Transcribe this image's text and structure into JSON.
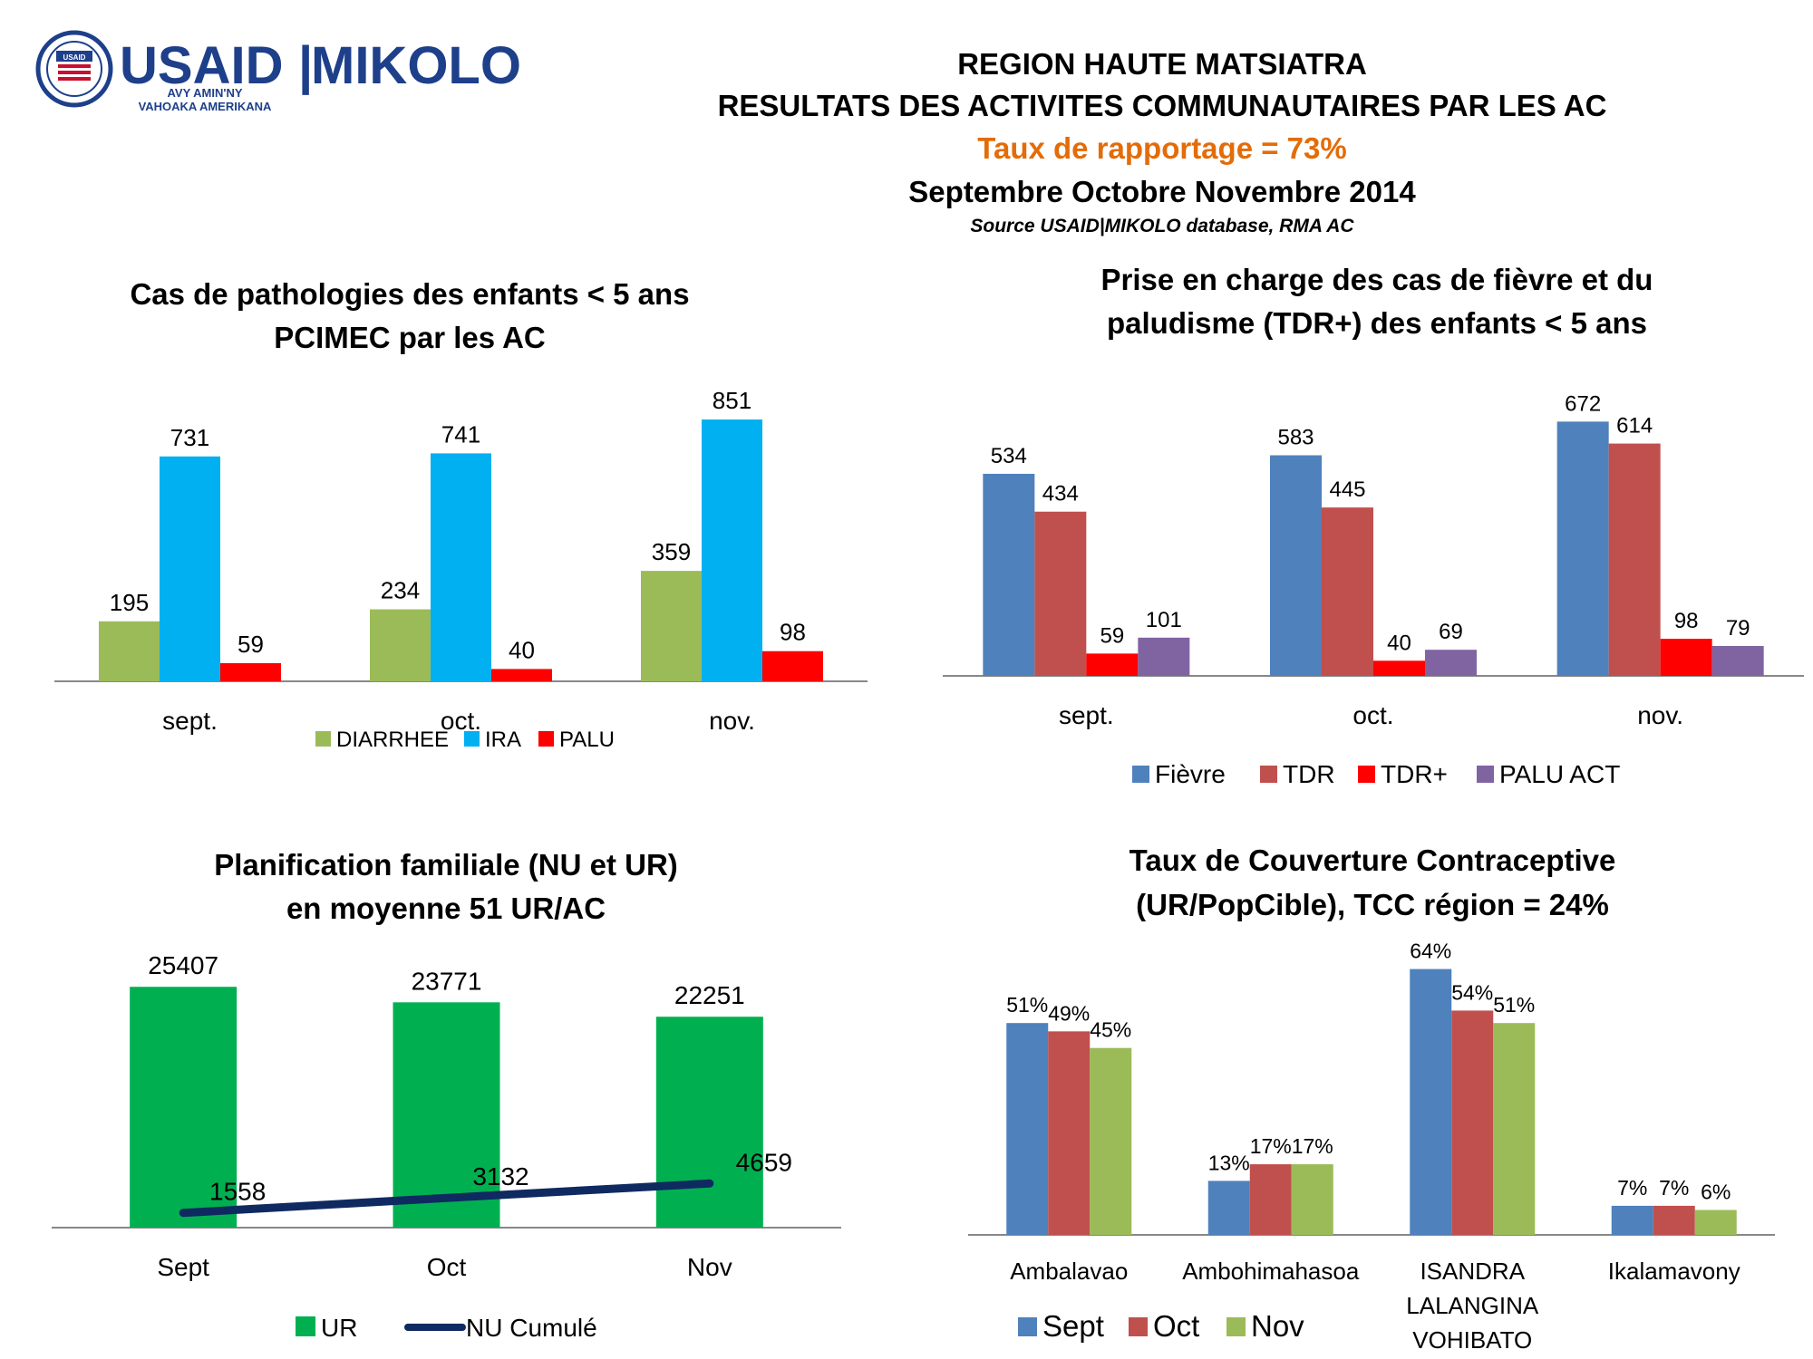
{
  "logo": {
    "brand": "USAID",
    "separator": "|",
    "program": "MIKOLO",
    "tagline_1": "AVY AMIN'NY",
    "tagline_2": "VAHOAKA AMERIKANA",
    "seal_text": "USAID",
    "colors": {
      "usaid_blue": "#1e3f8a",
      "usaid_red": "#c8102e"
    }
  },
  "header": {
    "line1": "REGION HAUTE MATSIATRA",
    "line2": "RESULTATS DES ACTIVITES COMMUNAUTAIRES PAR LES AC",
    "line3": "Taux de rapportage = 73%",
    "line4": "Septembre Octobre Novembre 2014",
    "source": "Source USAID|MIKOLO database, RMA AC",
    "colors": {
      "highlight": "#e36c09"
    }
  },
  "chart_data": [
    {
      "id": "pcimec",
      "type": "bar",
      "title": [
        "Cas de pathologies des enfants < 5 ans",
        "PCIMEC par les AC"
      ],
      "categories": [
        "sept.",
        "oct.",
        "nov."
      ],
      "series": [
        {
          "name": "DIARRHEE",
          "color": "#9bbb59",
          "values": [
            195,
            234,
            359
          ]
        },
        {
          "name": "IRA",
          "color": "#00b0f0",
          "values": [
            731,
            741,
            851
          ]
        },
        {
          "name": "PALU",
          "color": "#ff0000",
          "values": [
            59,
            40,
            98
          ]
        }
      ],
      "ylim": [
        0,
        860
      ],
      "legend": "bottom",
      "grid": false
    },
    {
      "id": "fievre",
      "type": "bar",
      "title": [
        "Prise en charge des cas de fièvre et du",
        "paludisme (TDR+) des enfants < 5 ans"
      ],
      "categories": [
        "sept.",
        "oct.",
        "nov."
      ],
      "series": [
        {
          "name": "Fièvre",
          "color": "#4f81bd",
          "values": [
            534,
            583,
            672
          ]
        },
        {
          "name": "TDR",
          "color": "#c0504d",
          "values": [
            434,
            445,
            614
          ]
        },
        {
          "name": "TDR+",
          "color": "#ff0000",
          "values": [
            59,
            40,
            98
          ]
        },
        {
          "name": "PALU ACT",
          "color": "#8064a2",
          "values": [
            101,
            69,
            79
          ]
        }
      ],
      "ylim": [
        0,
        680
      ],
      "legend": "bottom",
      "grid": false
    },
    {
      "id": "pf",
      "type": "bar",
      "title": [
        "Planification familiale (NU et UR)",
        "en moyenne 51 UR/AC"
      ],
      "categories": [
        "Sept",
        "Oct",
        "Nov"
      ],
      "series": [
        {
          "name": "UR",
          "color": "#00b050",
          "kind": "bar",
          "values": [
            25407,
            23771,
            22251
          ]
        },
        {
          "name": "NU Cumulé",
          "color": "#0f2a60",
          "kind": "line",
          "values": [
            1558,
            3132,
            4659
          ]
        }
      ],
      "ylim": [
        0,
        26000
      ],
      "legend": "bottom",
      "grid": false
    },
    {
      "id": "tcc",
      "type": "bar",
      "title": [
        "Taux de Couverture Contraceptive",
        "(UR/PopCible), TCC région = 24%"
      ],
      "categories": [
        [
          "Ambalavao"
        ],
        [
          "Ambohimahasoa"
        ],
        [
          "ISANDRA",
          "LALANGINA",
          "VOHIBATO"
        ],
        [
          "Ikalamavony"
        ]
      ],
      "series": [
        {
          "name": "Sept",
          "color": "#4f81bd",
          "values": [
            51,
            13,
            64,
            7
          ]
        },
        {
          "name": "Oct",
          "color": "#c0504d",
          "values": [
            49,
            17,
            54,
            7
          ]
        },
        {
          "name": "Nov",
          "color": "#9bbb59",
          "values": [
            45,
            17,
            51,
            6
          ]
        }
      ],
      "value_suffix": "%",
      "ylim": [
        0,
        65
      ],
      "legend": "bottom",
      "grid": false
    }
  ]
}
